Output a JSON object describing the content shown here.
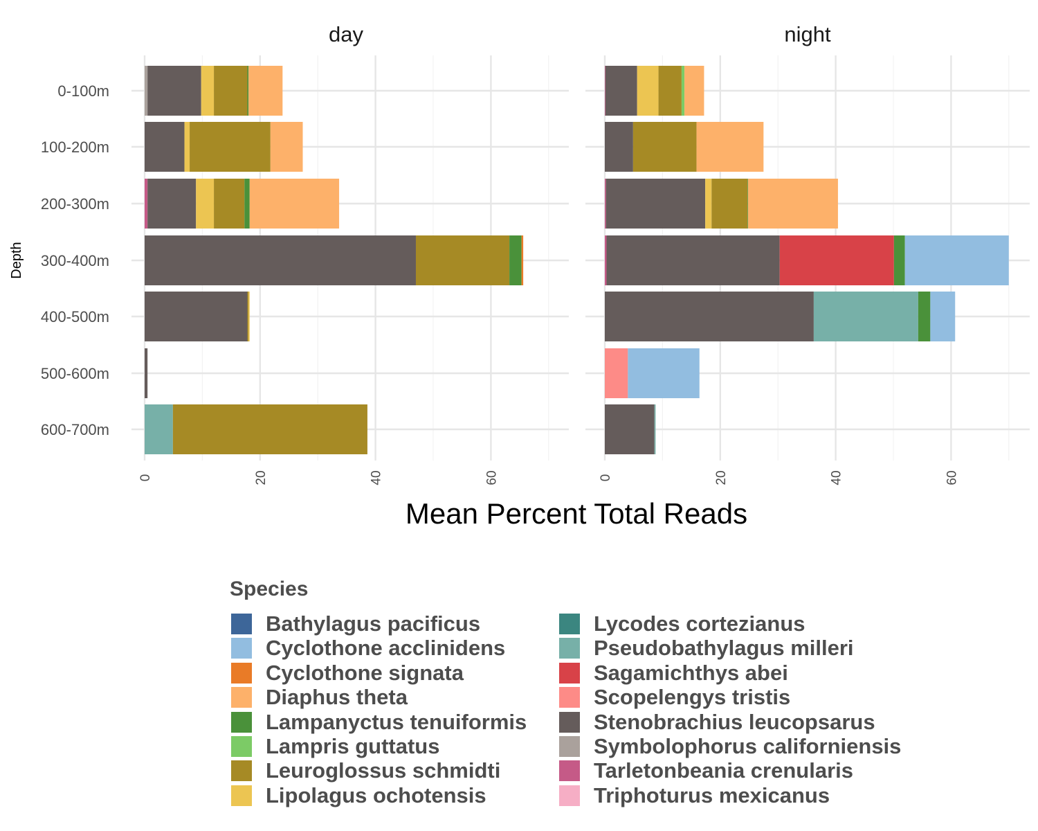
{
  "chart_data": {
    "type": "bar",
    "orientation": "horizontal",
    "stacked": true,
    "xlabel": "Mean Percent Total Reads",
    "ylabel": "Depth",
    "xlim": [
      0,
      70
    ],
    "x_ticks": [
      "0",
      "20",
      "40",
      "60"
    ],
    "categories": [
      "0-100m",
      "100-200m",
      "200-300m",
      "300-400m",
      "400-500m",
      "500-600m",
      "600-700m"
    ],
    "legend_title": "Species",
    "legend_position": "bottom",
    "grid": true,
    "species": [
      {
        "name": "Bathylagus pacificus",
        "color": "#3d6699"
      },
      {
        "name": "Cyclothone acclinidens",
        "color": "#92bde0"
      },
      {
        "name": "Cyclothone signata",
        "color": "#e97b27"
      },
      {
        "name": "Diaphus theta",
        "color": "#fdb16a"
      },
      {
        "name": "Lampanyctus tenuiformis",
        "color": "#4a913a"
      },
      {
        "name": "Lampris guttatus",
        "color": "#7ccb66"
      },
      {
        "name": "Leuroglossus schmidti",
        "color": "#a68a25"
      },
      {
        "name": "Lipolagus ochotensis",
        "color": "#ecc552"
      },
      {
        "name": "Lycodes cortezianus",
        "color": "#3b8680"
      },
      {
        "name": "Pseudobathylagus milleri",
        "color": "#77b0a8"
      },
      {
        "name": "Sagamichthys abei",
        "color": "#d84248"
      },
      {
        "name": "Scopelengys tristis",
        "color": "#fd8b87"
      },
      {
        "name": "Stenobrachius leucopsarus",
        "color": "#655c5b"
      },
      {
        "name": "Symbolophorus californiensis",
        "color": "#aaa19c"
      },
      {
        "name": "Tarletonbeania crenularis",
        "color": "#c55a87"
      },
      {
        "name": "Triphoturus mexicanus",
        "color": "#f6aec5"
      }
    ],
    "panels": [
      {
        "title": "day",
        "bars": [
          {
            "depth": "0-100m",
            "segments": [
              [
                "Symbolophorus californiensis",
                0.5
              ],
              [
                "Stenobrachius leucopsarus",
                9.3
              ],
              [
                "Lipolagus ochotensis",
                2.2
              ],
              [
                "Leuroglossus schmidti",
                5.8
              ],
              [
                "Lampanyctus tenuiformis",
                0.2
              ],
              [
                "Diaphus theta",
                5.9
              ]
            ]
          },
          {
            "depth": "100-200m",
            "segments": [
              [
                "Stenobrachius leucopsarus",
                6.9
              ],
              [
                "Lipolagus ochotensis",
                0.9
              ],
              [
                "Leuroglossus schmidti",
                14.0
              ],
              [
                "Diaphus theta",
                5.6
              ]
            ]
          },
          {
            "depth": "200-300m",
            "segments": [
              [
                "Tarletonbeania crenularis",
                0.5
              ],
              [
                "Stenobrachius leucopsarus",
                8.4
              ],
              [
                "Lipolagus ochotensis",
                3.1
              ],
              [
                "Leuroglossus schmidti",
                5.3
              ],
              [
                "Lampanyctus tenuiformis",
                0.9
              ],
              [
                "Diaphus theta",
                15.5
              ]
            ]
          },
          {
            "depth": "300-400m",
            "segments": [
              [
                "Stenobrachius leucopsarus",
                47.0
              ],
              [
                "Leuroglossus schmidti",
                16.2
              ],
              [
                "Lampanyctus tenuiformis",
                2.1
              ],
              [
                "Cyclothone signata",
                0.3
              ]
            ]
          },
          {
            "depth": "400-500m",
            "segments": [
              [
                "Stenobrachius leucopsarus",
                17.8
              ],
              [
                "Leuroglossus schmidti",
                0.2
              ],
              [
                "Lipolagus ochotensis",
                0.2
              ]
            ]
          },
          {
            "depth": "500-600m",
            "segments": [
              [
                "Stenobrachius leucopsarus",
                0.5
              ]
            ]
          },
          {
            "depth": "600-700m",
            "segments": [
              [
                "Pseudobathylagus milleri",
                4.9
              ],
              [
                "Leuroglossus schmidti",
                33.7
              ]
            ]
          }
        ]
      },
      {
        "title": "night",
        "bars": [
          {
            "depth": "0-100m",
            "segments": [
              [
                "Tarletonbeania crenularis",
                0.1
              ],
              [
                "Stenobrachius leucopsarus",
                5.5
              ],
              [
                "Lipolagus ochotensis",
                3.7
              ],
              [
                "Leuroglossus schmidti",
                4.0
              ],
              [
                "Lampris guttatus",
                0.5
              ],
              [
                "Diaphus theta",
                3.4
              ]
            ]
          },
          {
            "depth": "100-200m",
            "segments": [
              [
                "Stenobrachius leucopsarus",
                4.9
              ],
              [
                "Leuroglossus schmidti",
                11.0
              ],
              [
                "Diaphus theta",
                11.6
              ]
            ]
          },
          {
            "depth": "200-300m",
            "segments": [
              [
                "Tarletonbeania crenularis",
                0.2
              ],
              [
                "Stenobrachius leucopsarus",
                17.2
              ],
              [
                "Lipolagus ochotensis",
                1.1
              ],
              [
                "Leuroglossus schmidti",
                6.2
              ],
              [
                "Lampanyctus tenuiformis",
                0.1
              ],
              [
                "Diaphus theta",
                15.6
              ]
            ]
          },
          {
            "depth": "300-400m",
            "segments": [
              [
                "Tarletonbeania crenularis",
                0.3
              ],
              [
                "Stenobrachius leucopsarus",
                30.0
              ],
              [
                "Sagamichthys abei",
                19.8
              ],
              [
                "Lampanyctus tenuiformis",
                1.9
              ],
              [
                "Cyclothone acclinidens",
                18.0
              ]
            ]
          },
          {
            "depth": "400-500m",
            "segments": [
              [
                "Stenobrachius leucopsarus",
                36.2
              ],
              [
                "Pseudobathylagus milleri",
                18.1
              ],
              [
                "Lampanyctus tenuiformis",
                2.1
              ],
              [
                "Cyclothone acclinidens",
                4.3
              ]
            ]
          },
          {
            "depth": "500-600m",
            "segments": [
              [
                "Scopelengys tristis",
                4.0
              ],
              [
                "Cyclothone acclinidens",
                12.4
              ]
            ]
          },
          {
            "depth": "600-700m",
            "segments": [
              [
                "Stenobrachius leucopsarus",
                8.6
              ],
              [
                "Pseudobathylagus milleri",
                0.2
              ]
            ]
          }
        ]
      }
    ]
  }
}
